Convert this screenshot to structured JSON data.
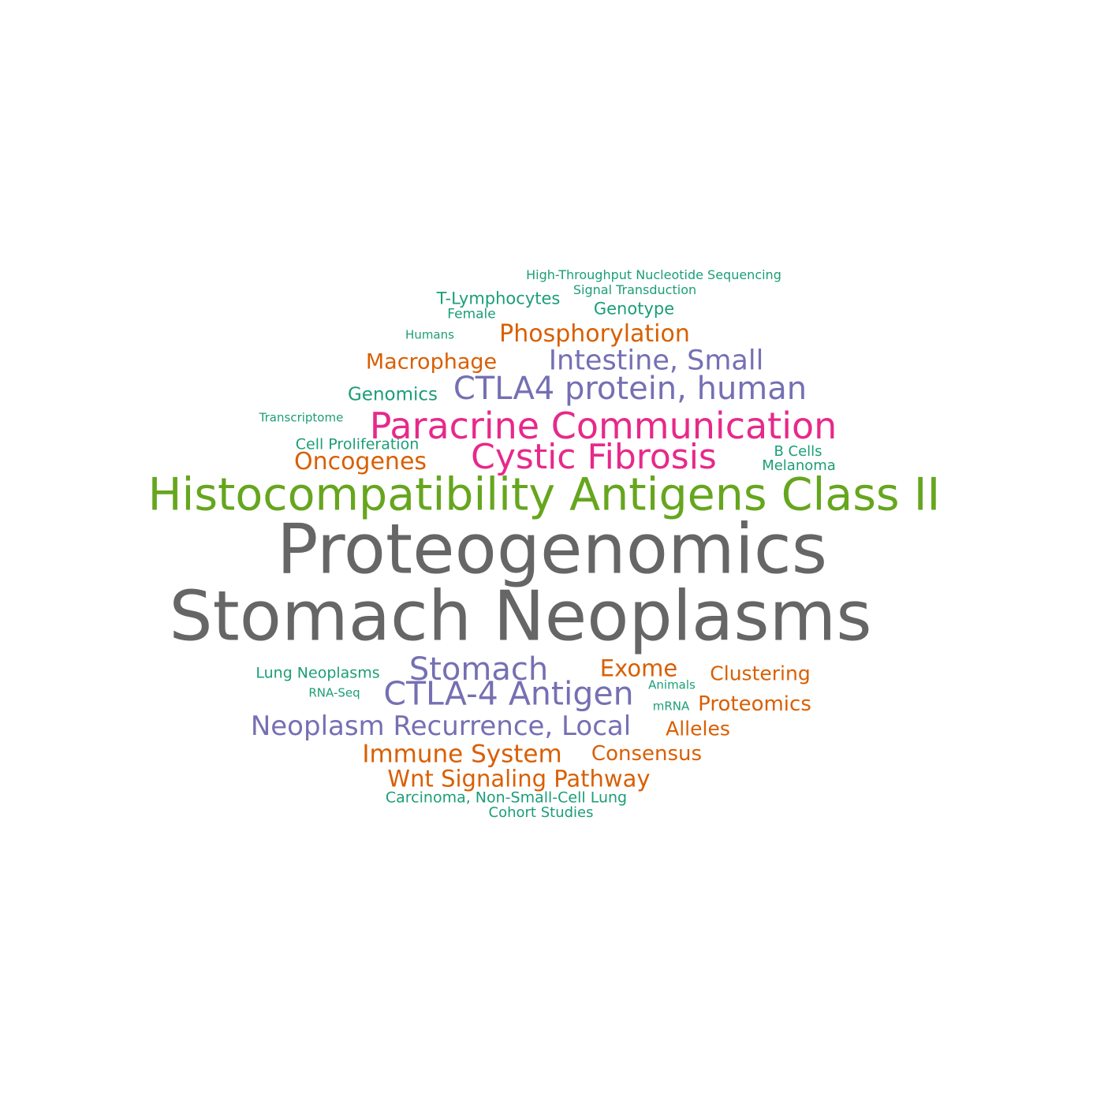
{
  "colors": {
    "gray": "#666666",
    "green": "#66a61e",
    "pink": "#e7298a",
    "purple": "#7570b3",
    "orange": "#d95f02",
    "teal": "#1b9e77"
  },
  "words": [
    {
      "text": "High-Throughput Nucleotide Sequencing",
      "color": "teal"
    },
    {
      "text": "Signal Transduction",
      "color": "teal"
    },
    {
      "text": "T-Lymphocytes",
      "color": "teal"
    },
    {
      "text": "Genotype",
      "color": "teal"
    },
    {
      "text": "Female",
      "color": "teal"
    },
    {
      "text": "Humans",
      "color": "teal"
    },
    {
      "text": "Phosphorylation",
      "color": "orange"
    },
    {
      "text": "Macrophage",
      "color": "orange"
    },
    {
      "text": "Intestine, Small",
      "color": "purple"
    },
    {
      "text": "Genomics",
      "color": "teal"
    },
    {
      "text": "CTLA4 protein, human",
      "color": "purple"
    },
    {
      "text": "Transcriptome",
      "color": "teal"
    },
    {
      "text": "Paracrine Communication",
      "color": "pink"
    },
    {
      "text": "Cell Proliferation",
      "color": "teal"
    },
    {
      "text": "Oncogenes",
      "color": "orange"
    },
    {
      "text": "Cystic Fibrosis",
      "color": "pink"
    },
    {
      "text": "B Cells",
      "color": "teal"
    },
    {
      "text": "Melanoma",
      "color": "teal"
    },
    {
      "text": "Histocompatibility Antigens Class II",
      "color": "green"
    },
    {
      "text": "Proteogenomics",
      "color": "gray"
    },
    {
      "text": "Stomach Neoplasms",
      "color": "gray"
    },
    {
      "text": "Lung Neoplasms",
      "color": "teal"
    },
    {
      "text": "Stomach",
      "color": "purple"
    },
    {
      "text": "Exome",
      "color": "orange"
    },
    {
      "text": "Clustering",
      "color": "orange"
    },
    {
      "text": "Animals",
      "color": "teal"
    },
    {
      "text": "RNA-Seq",
      "color": "teal"
    },
    {
      "text": "CTLA-4 Antigen",
      "color": "purple"
    },
    {
      "text": "mRNA",
      "color": "teal"
    },
    {
      "text": "Proteomics",
      "color": "orange"
    },
    {
      "text": "Neoplasm Recurrence, Local",
      "color": "purple"
    },
    {
      "text": "Alleles",
      "color": "orange"
    },
    {
      "text": "Immune System",
      "color": "orange"
    },
    {
      "text": "Consensus",
      "color": "orange"
    },
    {
      "text": "Wnt Signaling Pathway",
      "color": "orange"
    },
    {
      "text": "Carcinoma, Non-Small-Cell Lung",
      "color": "teal"
    },
    {
      "text": "Cohort Studies",
      "color": "teal"
    }
  ]
}
